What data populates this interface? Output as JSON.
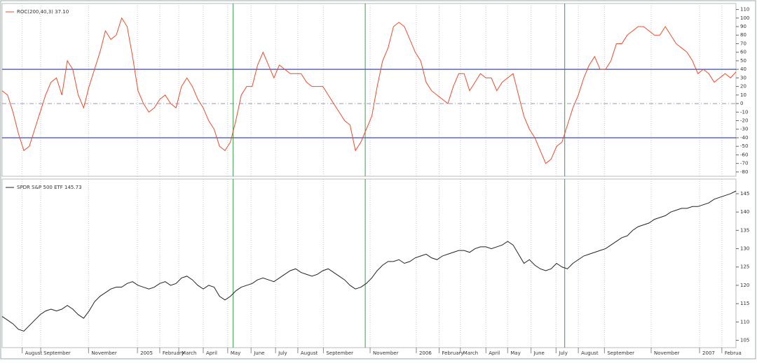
{
  "chart_data": [
    {
      "type": "line",
      "legend": "ROC(200,40,3) 37.10",
      "color": "#ee4b2b",
      "xlim": [
        0,
        135
      ],
      "ylim": [
        -85,
        117
      ],
      "yticks": [
        110,
        100,
        90,
        80,
        70,
        60,
        50,
        40,
        30,
        20,
        10,
        0,
        -10,
        -20,
        -30,
        -40,
        -50,
        -60,
        -70,
        -80
      ],
      "hlines": [
        40,
        -40
      ],
      "hline_color": "#3a4bb0",
      "dashed_hline": 0,
      "vlines": [
        42.5,
        66.8,
        103.5
      ],
      "vline_color": "#3c9a4c",
      "values": [
        15,
        10,
        -10,
        -35,
        -55,
        -50,
        -30,
        -10,
        10,
        25,
        30,
        10,
        50,
        40,
        10,
        -5,
        20,
        40,
        60,
        85,
        75,
        80,
        100,
        90,
        55,
        15,
        0,
        -10,
        -5,
        5,
        10,
        0,
        -5,
        20,
        30,
        20,
        5,
        -5,
        -20,
        -30,
        -50,
        -55,
        -45,
        -20,
        10,
        20,
        20,
        45,
        60,
        45,
        30,
        45,
        40,
        35,
        35,
        35,
        25,
        20,
        20,
        20,
        10,
        0,
        -10,
        -20,
        -25,
        -55,
        -45,
        -30,
        -15,
        20,
        50,
        65,
        90,
        95,
        90,
        75,
        60,
        50,
        25,
        15,
        10,
        5,
        0,
        20,
        35,
        35,
        15,
        25,
        35,
        30,
        30,
        15,
        25,
        30,
        35,
        10,
        -15,
        -30,
        -40,
        -55,
        -70,
        -65,
        -50,
        -45,
        -25,
        -5,
        10,
        30,
        45,
        55,
        40,
        40,
        50,
        70,
        70,
        80,
        85,
        90,
        90,
        85,
        80,
        80,
        90,
        80,
        70,
        65,
        60,
        50,
        35,
        40,
        35,
        25,
        30,
        35,
        30,
        37.1
      ]
    },
    {
      "type": "line",
      "legend": "SPDR S&P 500 ETF 145.73",
      "color": "#222222",
      "xlim": [
        0,
        135
      ],
      "ylim": [
        103,
        149
      ],
      "yticks": [
        145,
        140,
        135,
        130,
        125,
        120,
        115,
        110,
        105
      ],
      "xticks": [
        {
          "value": 3.7,
          "label": "August"
        },
        {
          "value": 7.1,
          "label": "September"
        },
        {
          "value": 15.9,
          "label": "November"
        },
        {
          "value": 24.9,
          "label": "2005"
        },
        {
          "value": 29.0,
          "label": "February"
        },
        {
          "value": 32.5,
          "label": "March"
        },
        {
          "value": 37.0,
          "label": "April"
        },
        {
          "value": 41.5,
          "label": "May"
        },
        {
          "value": 45.8,
          "label": "June"
        },
        {
          "value": 50.3,
          "label": "July"
        },
        {
          "value": 54.4,
          "label": "August"
        },
        {
          "value": 59.1,
          "label": "September"
        },
        {
          "value": 67.7,
          "label": "November"
        },
        {
          "value": 76.2,
          "label": "2006"
        },
        {
          "value": 80.4,
          "label": "February"
        },
        {
          "value": 84.3,
          "label": "March"
        },
        {
          "value": 89.0,
          "label": "April"
        },
        {
          "value": 93.0,
          "label": "May"
        },
        {
          "value": 97.3,
          "label": "June"
        },
        {
          "value": 101.9,
          "label": "July"
        },
        {
          "value": 106.0,
          "label": "August"
        },
        {
          "value": 110.8,
          "label": "September"
        },
        {
          "value": 119.4,
          "label": "November"
        },
        {
          "value": 128.3,
          "label": "2007"
        },
        {
          "value": 132.4,
          "label": "Februa"
        }
      ],
      "values": [
        111.5,
        110.5,
        109.5,
        108,
        107.5,
        109,
        110.5,
        112,
        113,
        113.5,
        113,
        113.5,
        114.5,
        113.5,
        112,
        111,
        113,
        115.5,
        117,
        118,
        119,
        119.5,
        119.5,
        120.5,
        121,
        120,
        119.5,
        119,
        119.5,
        120.5,
        121,
        120,
        120.5,
        122,
        122.5,
        121.5,
        120,
        119,
        120,
        119.5,
        117,
        116,
        117,
        118.5,
        119.5,
        120,
        120.5,
        121.5,
        122,
        121.5,
        121,
        122,
        123,
        124,
        124.5,
        123.5,
        123,
        122.5,
        123,
        124,
        124.5,
        123.5,
        122.5,
        121.5,
        120,
        119,
        119.5,
        120.5,
        122,
        124,
        125.5,
        126.5,
        126.5,
        127,
        126,
        126.5,
        127.5,
        128,
        128.5,
        127.5,
        127,
        128,
        128.5,
        129,
        129.5,
        129.5,
        129,
        130,
        130.5,
        130.5,
        130,
        130.5,
        131,
        132,
        131,
        128.5,
        126,
        127,
        125.5,
        124.5,
        124,
        124.5,
        126,
        125,
        124.5,
        126,
        127,
        128,
        128.5,
        129,
        129.5,
        130,
        131,
        132,
        133,
        133.5,
        135,
        136,
        136.5,
        137,
        138,
        138.5,
        139,
        140,
        140.5,
        141,
        141,
        141.5,
        141.5,
        142,
        142.5,
        143.5,
        144,
        144.5,
        145,
        145.73
      ]
    }
  ]
}
